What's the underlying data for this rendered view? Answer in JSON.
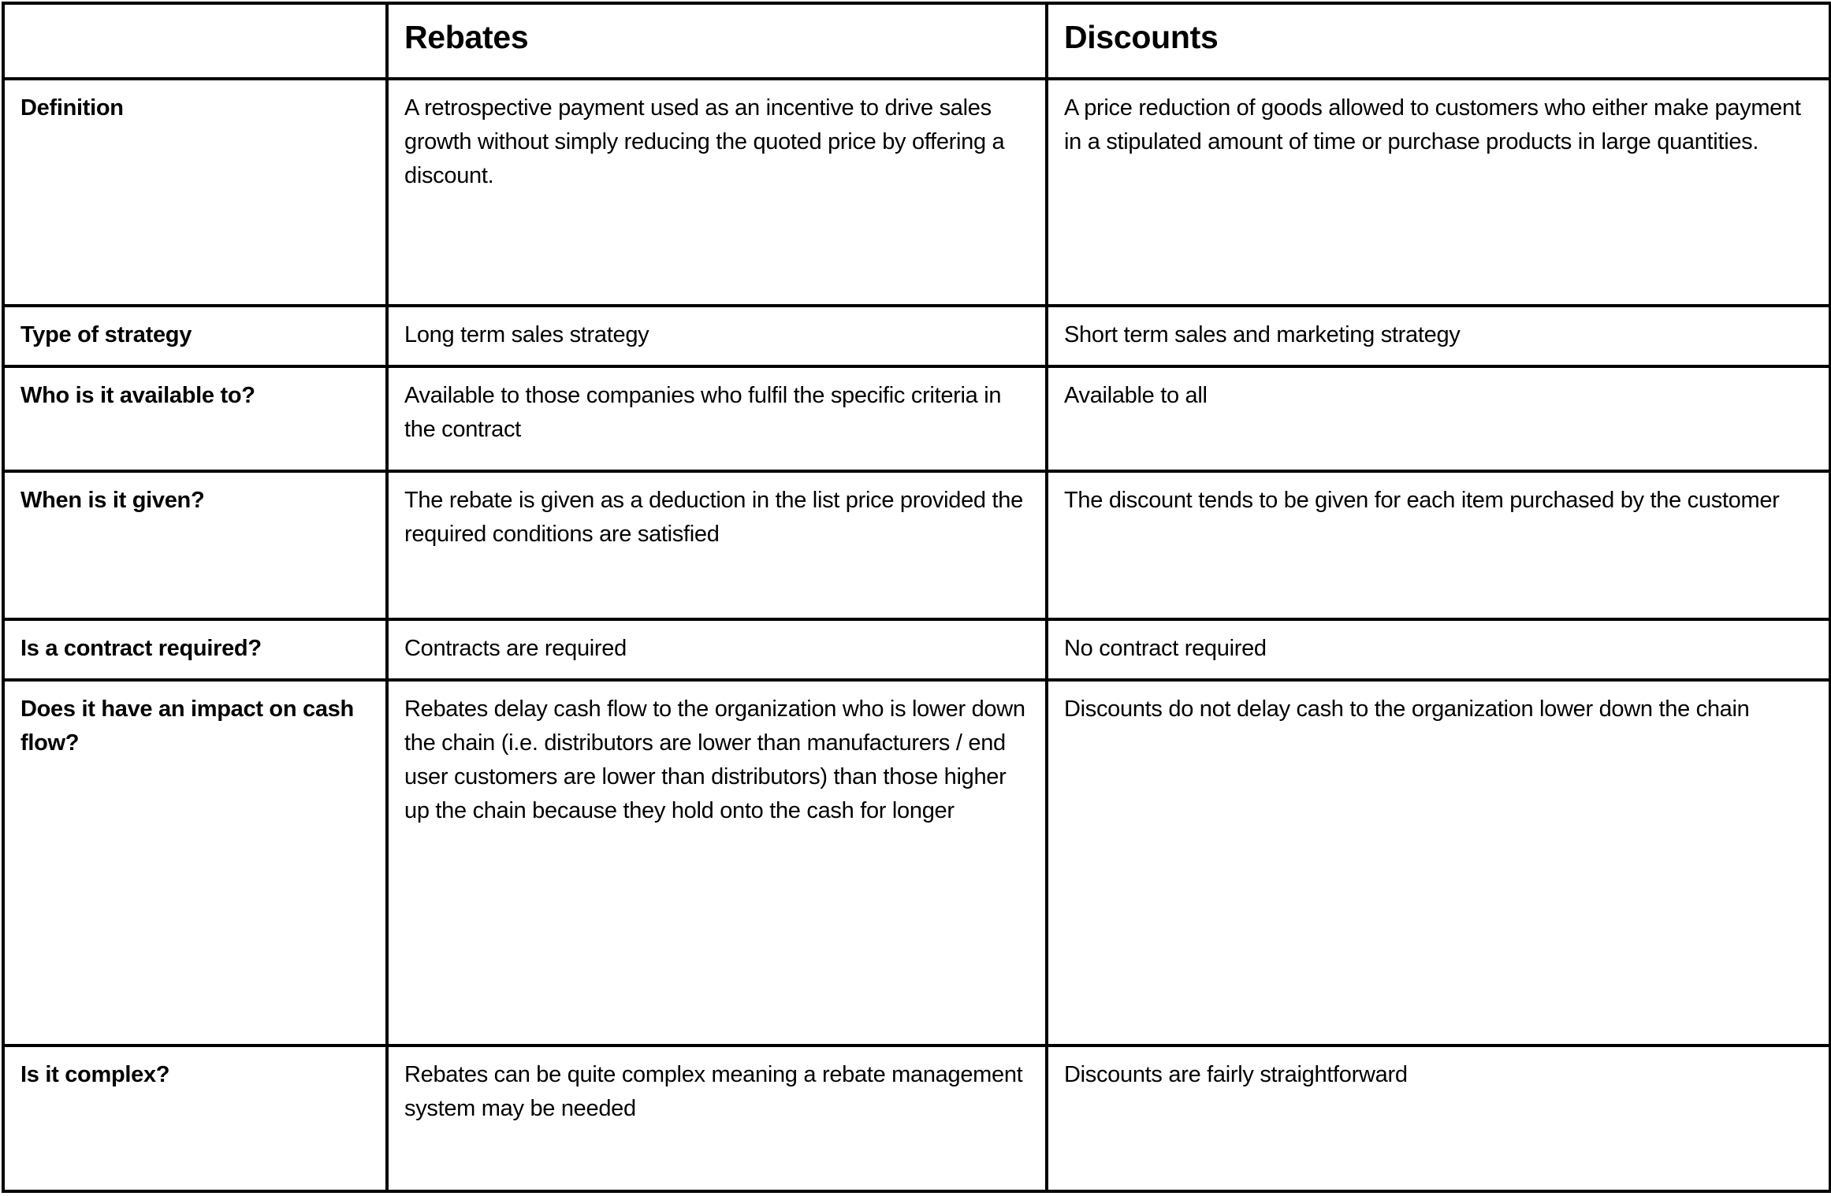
{
  "table": {
    "headers": [
      "",
      "Rebates",
      "Discounts"
    ],
    "rows": [
      {
        "label": "Definition",
        "rebates": "A retrospective payment used as an incentive to drive sales growth without simply reducing the quoted price by offering a discount.",
        "discounts": "A price reduction of goods allowed to customers who either make payment in a stipulated amount of time or purchase products in large quantities."
      },
      {
        "label": "Type of strategy",
        "rebates": "Long term sales strategy",
        "discounts": "Short term sales and marketing strategy"
      },
      {
        "label": "Who is it available to?",
        "rebates": "Available to those companies who fulfil the specific criteria in the contract",
        "discounts": "Available to all"
      },
      {
        "label": "When is it given?",
        "rebates": "The rebate is given as a deduction in the list price provided the required conditions are satisfied",
        "discounts": "The discount tends to be given for each item purchased by the customer"
      },
      {
        "label": "Is a contract required?",
        "rebates": "Contracts are required",
        "discounts": "No contract required"
      },
      {
        "label": "Does it have an impact on cash flow?",
        "rebates": "Rebates delay cash flow to the organization who is lower down the chain (i.e. distributors are lower than manufacturers / end user customers are lower than distributors) than those higher up the chain because they hold onto the cash for longer",
        "discounts": "Discounts do not delay cash to the organization lower down the chain"
      },
      {
        "label": "Is it complex?",
        "rebates": "Rebates can be quite complex meaning a rebate management system may be needed",
        "discounts": "Discounts are fairly straightforward"
      }
    ]
  }
}
